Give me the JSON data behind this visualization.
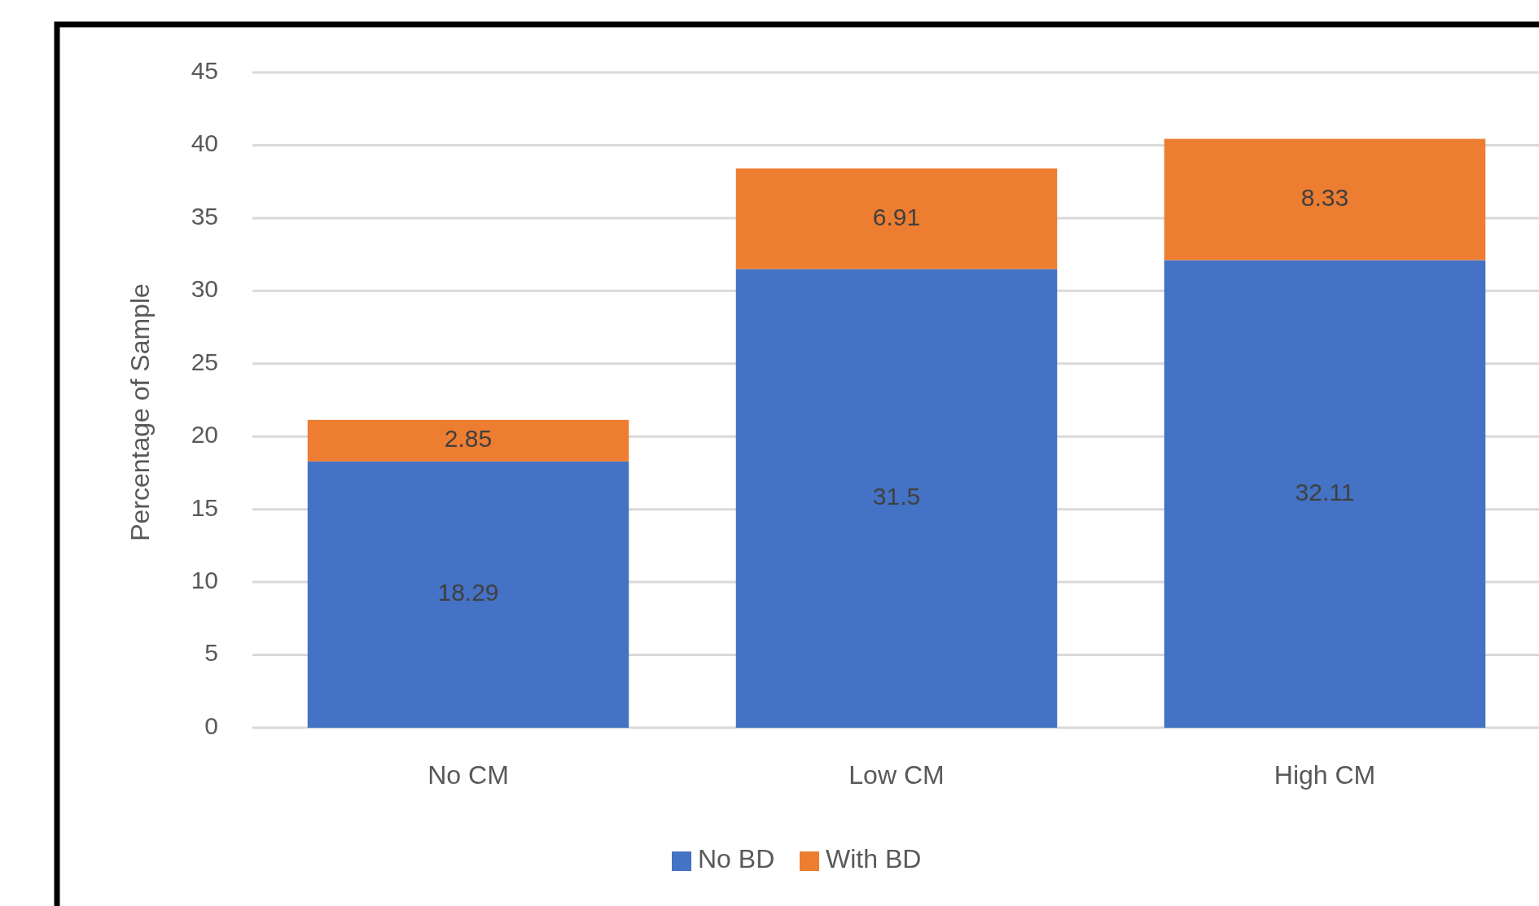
{
  "chart_data": {
    "type": "bar",
    "stacked": true,
    "ylabel": "Percentage of Sample",
    "categories": [
      "No CM",
      "Low CM",
      "High CM"
    ],
    "series": [
      {
        "name": "No BD",
        "color": "#4472c4",
        "values": [
          18.29,
          31.5,
          32.11
        ]
      },
      {
        "name": "With BD",
        "color": "#ed7d31",
        "values": [
          2.85,
          6.91,
          8.33
        ]
      }
    ],
    "ylim": [
      0,
      45
    ],
    "yticks": [
      0,
      5,
      10,
      15,
      20,
      25,
      30,
      35,
      40,
      45
    ],
    "grid": "y",
    "legend": "bottom",
    "data_labels": true
  }
}
